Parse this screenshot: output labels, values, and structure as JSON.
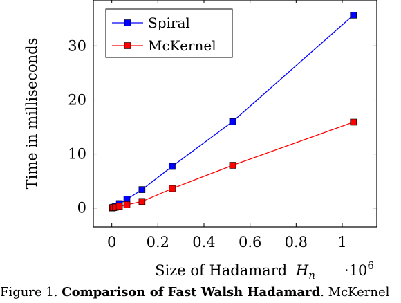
{
  "chart_data": {
    "type": "line",
    "xlabel": "Size of Hadamard",
    "xlabel_symbol": "H",
    "xlabel_sub": "n",
    "x_multiplier_base": "·10",
    "x_multiplier_exp": "6",
    "ylabel": "Time in milliseconds",
    "xlim": [
      -0.08,
      1.15
    ],
    "ylim": [
      -3.5,
      38.5
    ],
    "x_ticks": [
      0,
      0.2,
      0.4,
      0.6,
      0.8,
      1
    ],
    "x_tick_labels": [
      "0",
      "0.2",
      "0.4",
      "0.6",
      "0.8",
      "1"
    ],
    "y_ticks": [
      0,
      10,
      20,
      30
    ],
    "y_tick_labels": [
      "0",
      "10",
      "20",
      "30"
    ],
    "legend_position": "top-left",
    "grid": false,
    "x": [
      0.001024,
      0.002048,
      0.004096,
      0.008192,
      0.016384,
      0.032768,
      0.065536,
      0.131072,
      0.262144,
      0.524288,
      1.048576
    ],
    "series": [
      {
        "name": "Spiral",
        "color": "#0000ff",
        "marker": "square",
        "values": [
          0.02,
          0.04,
          0.07,
          0.15,
          0.3,
          0.8,
          1.6,
          3.4,
          7.7,
          16.0,
          35.7
        ]
      },
      {
        "name": "McKernel",
        "color": "#ff0000",
        "marker": "square",
        "values": [
          0.01,
          0.02,
          0.04,
          0.07,
          0.15,
          0.3,
          0.6,
          1.2,
          3.6,
          7.9,
          15.9
        ]
      }
    ]
  },
  "caption": {
    "prefix": "Figure 1. ",
    "bold": "Comparison of Fast Walsh Hadamard",
    "rest": ". McKernel"
  }
}
